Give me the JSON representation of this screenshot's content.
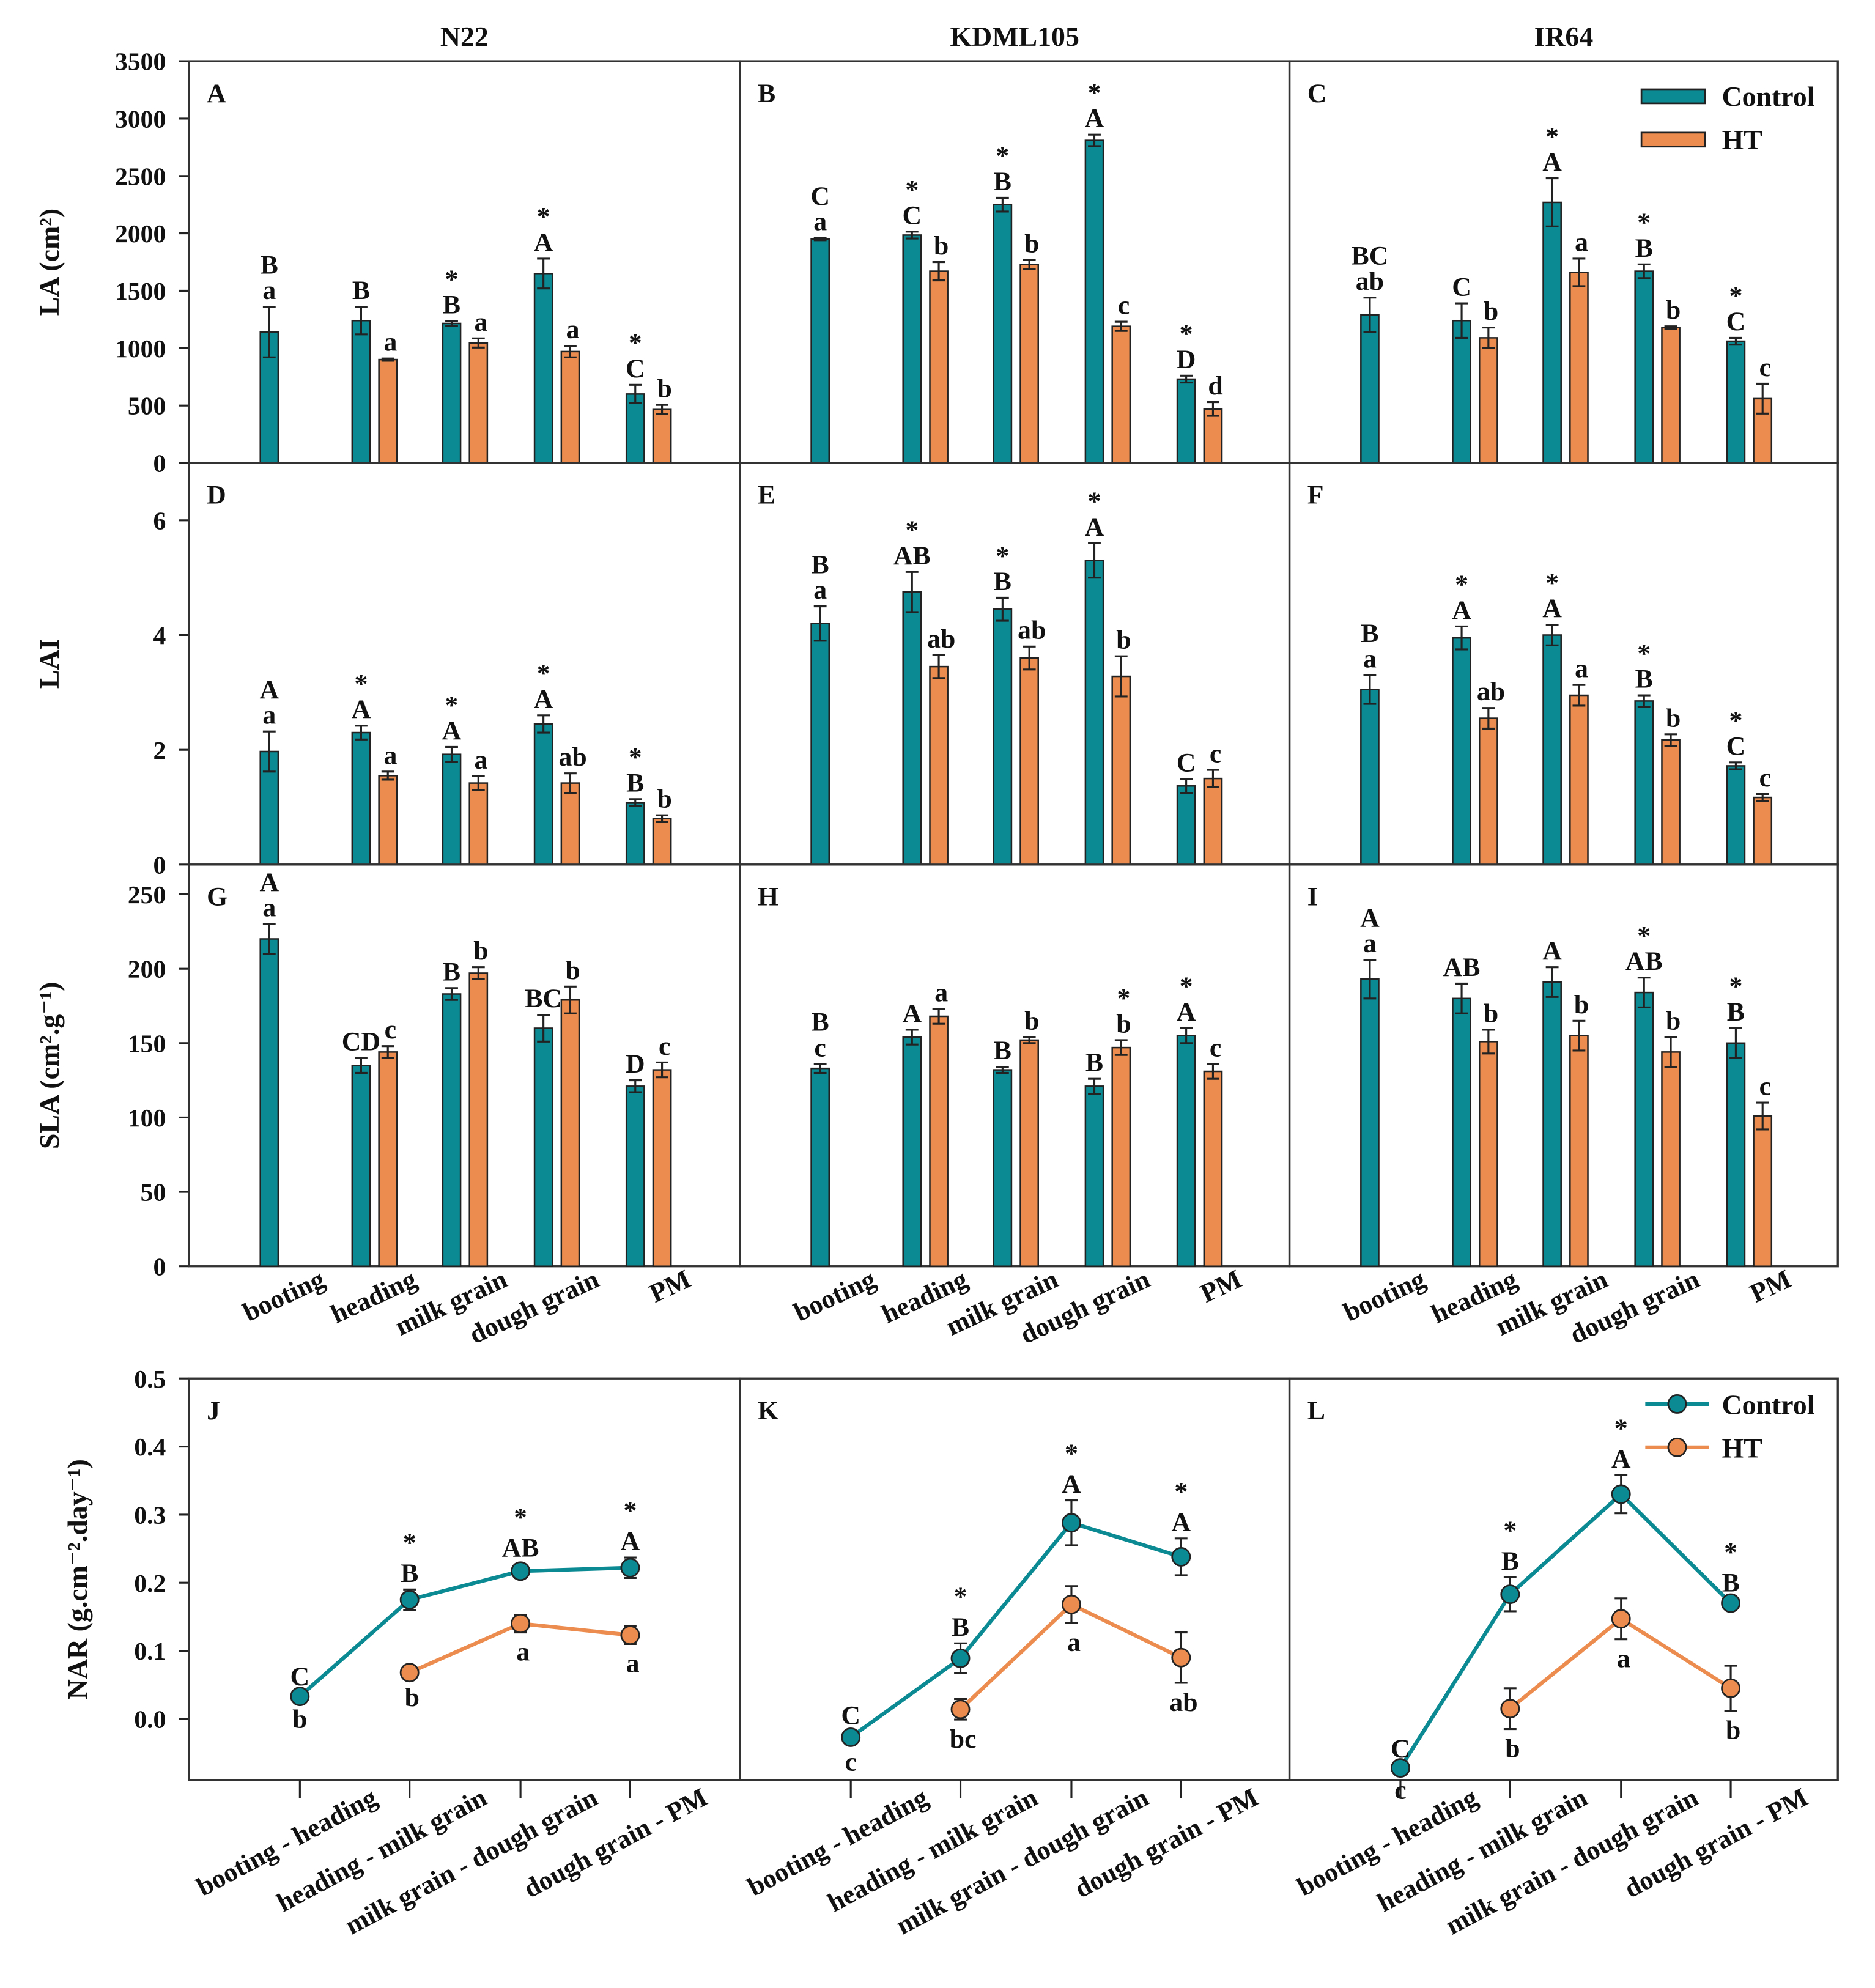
{
  "colors": {
    "control": "#0b8a93",
    "ht": "#ec8d4f"
  },
  "chart_data": {
    "type": "bar",
    "column_titles": [
      "N22",
      "KDML105",
      "IR64"
    ],
    "legend": {
      "control": "Control",
      "ht": "HT",
      "placement": "top-right"
    },
    "rows": [
      {
        "type": "bar",
        "ylabel": "LA (cm²)",
        "ylim": [
          0,
          3500
        ],
        "yticks": [
          0,
          500,
          1000,
          1500,
          2000,
          2500,
          3000,
          3500
        ],
        "ytick_labels": [
          "0",
          "500",
          "1000",
          "1500",
          "2000",
          "2500",
          "3000",
          "3500"
        ],
        "categories": [
          "booting",
          "heading",
          "milk grain",
          "dough grain",
          "PM"
        ],
        "panels": [
          {
            "letter": "A",
            "cultivar": "N22",
            "control": {
              "values": [
                1140,
                1240,
                1215,
                1650,
                600
              ],
              "errors": [
                220,
                120,
                20,
                130,
                80
              ],
              "letters": [
                "B",
                "B",
                "B",
                "A",
                "C"
              ]
            },
            "ht": {
              "values": [
                null,
                900,
                1045,
                970,
                465
              ],
              "errors": [
                null,
                10,
                40,
                50,
                40
              ],
              "letters": [
                "a",
                "a",
                "a",
                "a",
                "b"
              ]
            },
            "significant": [
              false,
              false,
              true,
              true,
              true
            ]
          },
          {
            "letter": "B",
            "cultivar": "KDML105",
            "control": {
              "values": [
                1950,
                1985,
                2250,
                2810,
                730
              ],
              "errors": [
                10,
                30,
                60,
                50,
                30
              ],
              "letters": [
                "C",
                "C",
                "B",
                "A",
                "D"
              ]
            },
            "ht": {
              "values": [
                null,
                1670,
                1730,
                1190,
                470
              ],
              "errors": [
                null,
                80,
                40,
                40,
                60
              ],
              "letters": [
                "a",
                "b",
                "b",
                "c",
                "d"
              ]
            },
            "significant": [
              false,
              true,
              true,
              true,
              true
            ]
          },
          {
            "letter": "C",
            "cultivar": "IR64",
            "control": {
              "values": [
                1290,
                1240,
                2270,
                1670,
                1060
              ],
              "errors": [
                150,
                150,
                210,
                60,
                30
              ],
              "letters": [
                "BC",
                "C",
                "A",
                "B",
                "C"
              ]
            },
            "ht": {
              "values": [
                null,
                1090,
                1660,
                1180,
                560
              ],
              "errors": [
                null,
                90,
                120,
                10,
                130
              ],
              "letters": [
                "ab",
                "b",
                "a",
                "b",
                "c"
              ]
            },
            "significant": [
              false,
              false,
              true,
              true,
              true
            ]
          }
        ]
      },
      {
        "type": "bar",
        "ylabel": "LAI",
        "ylim": [
          0,
          7
        ],
        "yticks": [
          0,
          2,
          4,
          6
        ],
        "ytick_labels": [
          "0",
          "2",
          "4",
          "6"
        ],
        "categories": [
          "booting",
          "heading",
          "milk grain",
          "dough grain",
          "PM"
        ],
        "panels": [
          {
            "letter": "D",
            "cultivar": "N22",
            "control": {
              "values": [
                1.97,
                2.3,
                1.92,
                2.45,
                1.08
              ],
              "errors": [
                0.35,
                0.12,
                0.13,
                0.15,
                0.06
              ],
              "letters": [
                "A",
                "A",
                "A",
                "A",
                "B"
              ]
            },
            "ht": {
              "values": [
                null,
                1.55,
                1.42,
                1.42,
                0.8
              ],
              "errors": [
                null,
                0.07,
                0.12,
                0.17,
                0.06
              ],
              "letters": [
                "a",
                "a",
                "a",
                "ab",
                "b"
              ]
            },
            "significant": [
              false,
              true,
              true,
              true,
              true
            ]
          },
          {
            "letter": "E",
            "cultivar": "KDML105",
            "control": {
              "values": [
                4.2,
                4.75,
                4.45,
                5.3,
                1.37
              ],
              "errors": [
                0.3,
                0.35,
                0.2,
                0.3,
                0.12
              ],
              "letters": [
                "B",
                "AB",
                "B",
                "A",
                "C"
              ]
            },
            "ht": {
              "values": [
                null,
                3.45,
                3.6,
                3.28,
                1.5
              ],
              "errors": [
                null,
                0.2,
                0.2,
                0.35,
                0.15
              ],
              "letters": [
                "a",
                "ab",
                "ab",
                "b",
                "c"
              ]
            },
            "significant": [
              false,
              true,
              true,
              true,
              false
            ]
          },
          {
            "letter": "F",
            "cultivar": "IR64",
            "control": {
              "values": [
                3.05,
                3.95,
                4.0,
                2.85,
                1.72
              ],
              "errors": [
                0.25,
                0.2,
                0.18,
                0.1,
                0.06
              ],
              "letters": [
                "B",
                "A",
                "A",
                "B",
                "C"
              ]
            },
            "ht": {
              "values": [
                null,
                2.55,
                2.95,
                2.17,
                1.17
              ],
              "errors": [
                null,
                0.18,
                0.18,
                0.1,
                0.06
              ],
              "letters": [
                "a",
                "ab",
                "a",
                "b",
                "c"
              ]
            },
            "significant": [
              false,
              true,
              true,
              true,
              true
            ]
          }
        ]
      },
      {
        "type": "bar",
        "ylabel": "SLA (cm².g⁻¹)",
        "ylim": [
          0,
          270
        ],
        "yticks": [
          0,
          50,
          100,
          150,
          200,
          250
        ],
        "ytick_labels": [
          "0",
          "50",
          "100",
          "150",
          "200",
          "250"
        ],
        "categories": [
          "booting",
          "heading",
          "milk grain",
          "dough grain",
          "PM"
        ],
        "panels": [
          {
            "letter": "G",
            "cultivar": "N22",
            "control": {
              "values": [
                220,
                135,
                183,
                160,
                121
              ],
              "errors": [
                10,
                5,
                4,
                9,
                4
              ],
              "letters": [
                "A",
                "CD",
                "B",
                "BC",
                "D"
              ]
            },
            "ht": {
              "values": [
                null,
                144,
                197,
                179,
                132
              ],
              "errors": [
                null,
                4,
                4,
                9,
                5
              ],
              "letters": [
                "a",
                "c",
                "b",
                "b",
                "c"
              ]
            },
            "significant": [
              false,
              false,
              false,
              false,
              false
            ]
          },
          {
            "letter": "H",
            "cultivar": "KDML105",
            "control": {
              "values": [
                133,
                154,
                132,
                121,
                155
              ],
              "errors": [
                3,
                5,
                2,
                5,
                5
              ],
              "letters": [
                "B",
                "A",
                "B",
                "B",
                "A"
              ]
            },
            "ht": {
              "values": [
                null,
                168,
                152,
                147,
                131
              ],
              "errors": [
                null,
                5,
                2,
                5,
                5
              ],
              "letters": [
                "c",
                "a",
                "b",
                "b",
                "c"
              ]
            },
            "significant": [
              false,
              false,
              false,
              true,
              true
            ]
          },
          {
            "letter": "I",
            "cultivar": "IR64",
            "control": {
              "values": [
                193,
                180,
                191,
                184,
                150
              ],
              "errors": [
                13,
                10,
                10,
                10,
                10
              ],
              "letters": [
                "A",
                "AB",
                "A",
                "AB",
                "B"
              ]
            },
            "ht": {
              "values": [
                null,
                151,
                155,
                144,
                101
              ],
              "errors": [
                null,
                8,
                10,
                10,
                9
              ],
              "letters": [
                "a",
                "b",
                "b",
                "b",
                "c"
              ]
            },
            "significant": [
              false,
              false,
              false,
              true,
              true
            ]
          }
        ]
      },
      {
        "type": "line",
        "ylabel": "NAR (g.cm⁻².day⁻¹)",
        "ylim": [
          -0.09,
          0.5
        ],
        "yticks": [
          0,
          0.1,
          0.2,
          0.3,
          0.4,
          0.5
        ],
        "ytick_labels": [
          "0.0",
          "0.1",
          "0.2",
          "0.3",
          "0.4",
          "0.5"
        ],
        "categories": [
          "booting - heading",
          "heading - milk grain",
          "milk grain - dough grain",
          "dough grain - PM"
        ],
        "panels": [
          {
            "letter": "J",
            "cultivar": "N22",
            "control": {
              "values": [
                0.033,
                0.175,
                0.217,
                0.222
              ],
              "errors": [
                0.005,
                0.015,
                0.01,
                0.015
              ],
              "letters": [
                "C",
                "B",
                "AB",
                "A"
              ]
            },
            "ht": {
              "values": [
                null,
                0.068,
                0.14,
                0.123
              ],
              "errors": [
                null,
                0.008,
                0.013,
                0.013
              ],
              "letters": [
                "b",
                "b",
                "a",
                "a"
              ]
            },
            "significant": [
              false,
              true,
              true,
              true
            ]
          },
          {
            "letter": "K",
            "cultivar": "KDML105",
            "control": {
              "values": [
                -0.027,
                0.089,
                0.288,
                0.238
              ],
              "errors": [
                0.008,
                0.022,
                0.033,
                0.027
              ],
              "letters": [
                "C",
                "B",
                "A",
                "A"
              ]
            },
            "ht": {
              "values": [
                null,
                0.014,
                0.168,
                0.09
              ],
              "errors": [
                null,
                0.015,
                0.027,
                0.037
              ],
              "letters": [
                "c",
                "bc",
                "a",
                "ab"
              ]
            },
            "significant": [
              false,
              true,
              true,
              true
            ]
          },
          {
            "letter": "L",
            "cultivar": "IR64",
            "control": {
              "values": [
                -0.072,
                0.183,
                0.33,
                0.17
              ],
              "errors": [
                0.004,
                0.025,
                0.028,
                0.006
              ],
              "letters": [
                "C",
                "B",
                "A",
                "B"
              ]
            },
            "ht": {
              "values": [
                null,
                0.015,
                0.147,
                0.045
              ],
              "errors": [
                null,
                0.03,
                0.03,
                0.033
              ],
              "letters": [
                "c",
                "b",
                "a",
                "b"
              ]
            },
            "significant": [
              false,
              true,
              true,
              true
            ]
          }
        ]
      }
    ]
  }
}
